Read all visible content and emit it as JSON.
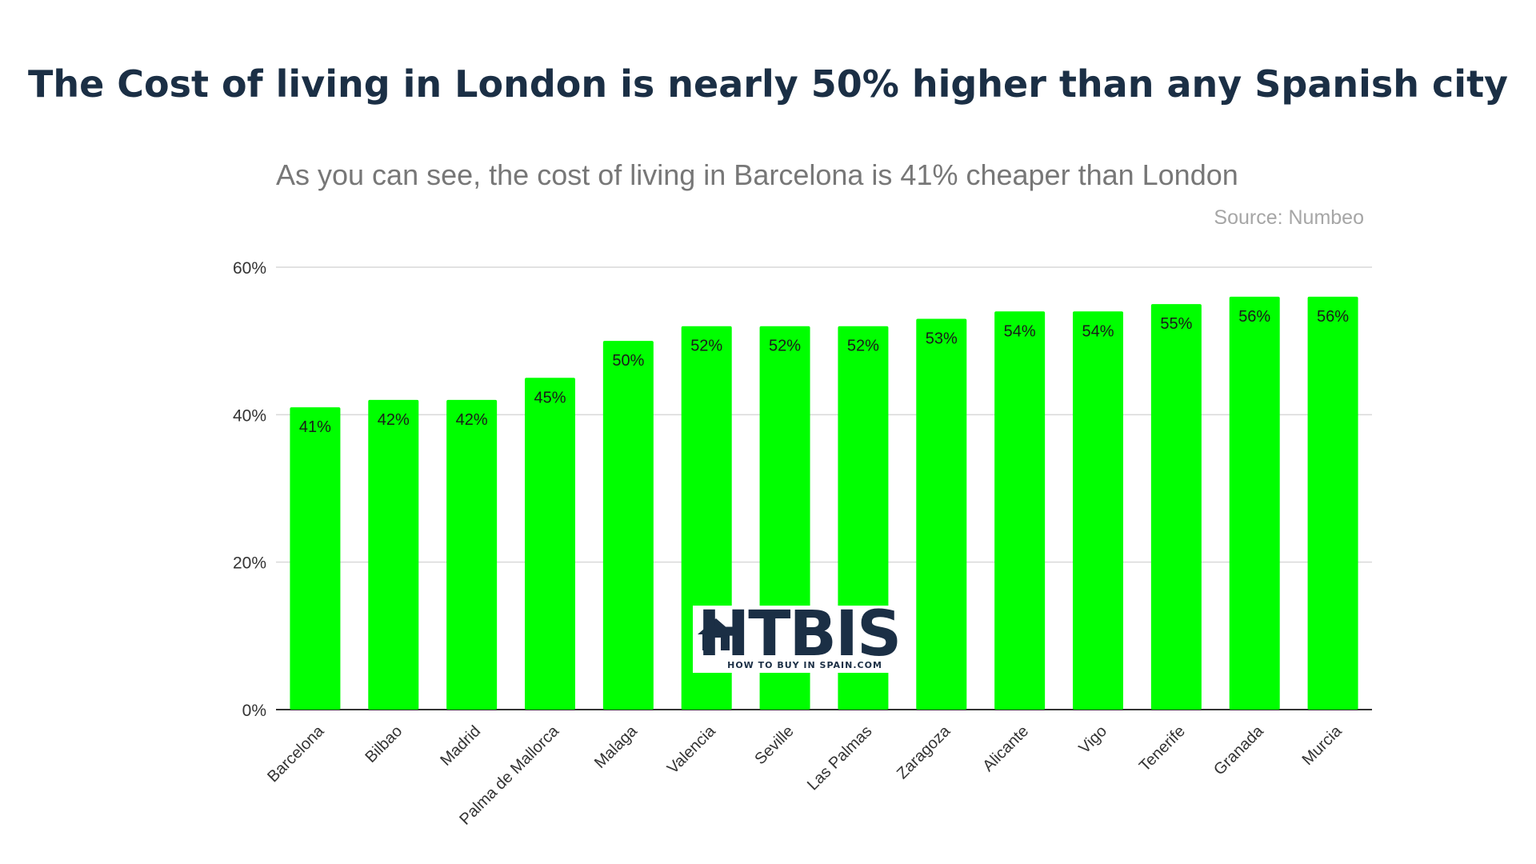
{
  "headline": "The Cost of living in London is nearly 50% higher than any Spanish city",
  "colors": {
    "bar": "#00ff00",
    "headline": "#1b2f45",
    "grid": "#d9d9d9"
  },
  "logo": {
    "word": "HTBIS",
    "tagline": "HOW TO BUY IN SPAIN.COM",
    "icon": "house-icon"
  },
  "chart_data": {
    "type": "bar",
    "title": "As you can see, the cost of living in Barcelona is 41% cheaper than London",
    "source": "Source: Numbeo",
    "xlabel": "",
    "ylabel": "",
    "ylim": [
      0,
      60
    ],
    "yticks": [
      "0%",
      "20%",
      "40%",
      "60%"
    ],
    "grid": true,
    "categories": [
      "Barcelona",
      "Bilbao",
      "Madrid",
      "Palma de Mallorca",
      "Malaga",
      "Valencia",
      "Seville",
      "Las Palmas",
      "Zaragoza",
      "Alicante",
      "Vigo",
      "Tenerife",
      "Granada",
      "Murcia"
    ],
    "values": [
      41,
      42,
      42,
      45,
      50,
      52,
      52,
      52,
      53,
      54,
      54,
      55,
      56,
      56
    ],
    "data_labels": [
      "41%",
      "42%",
      "42%",
      "45%",
      "50%",
      "52%",
      "52%",
      "52%",
      "53%",
      "54%",
      "54%",
      "55%",
      "56%",
      "56%"
    ]
  }
}
